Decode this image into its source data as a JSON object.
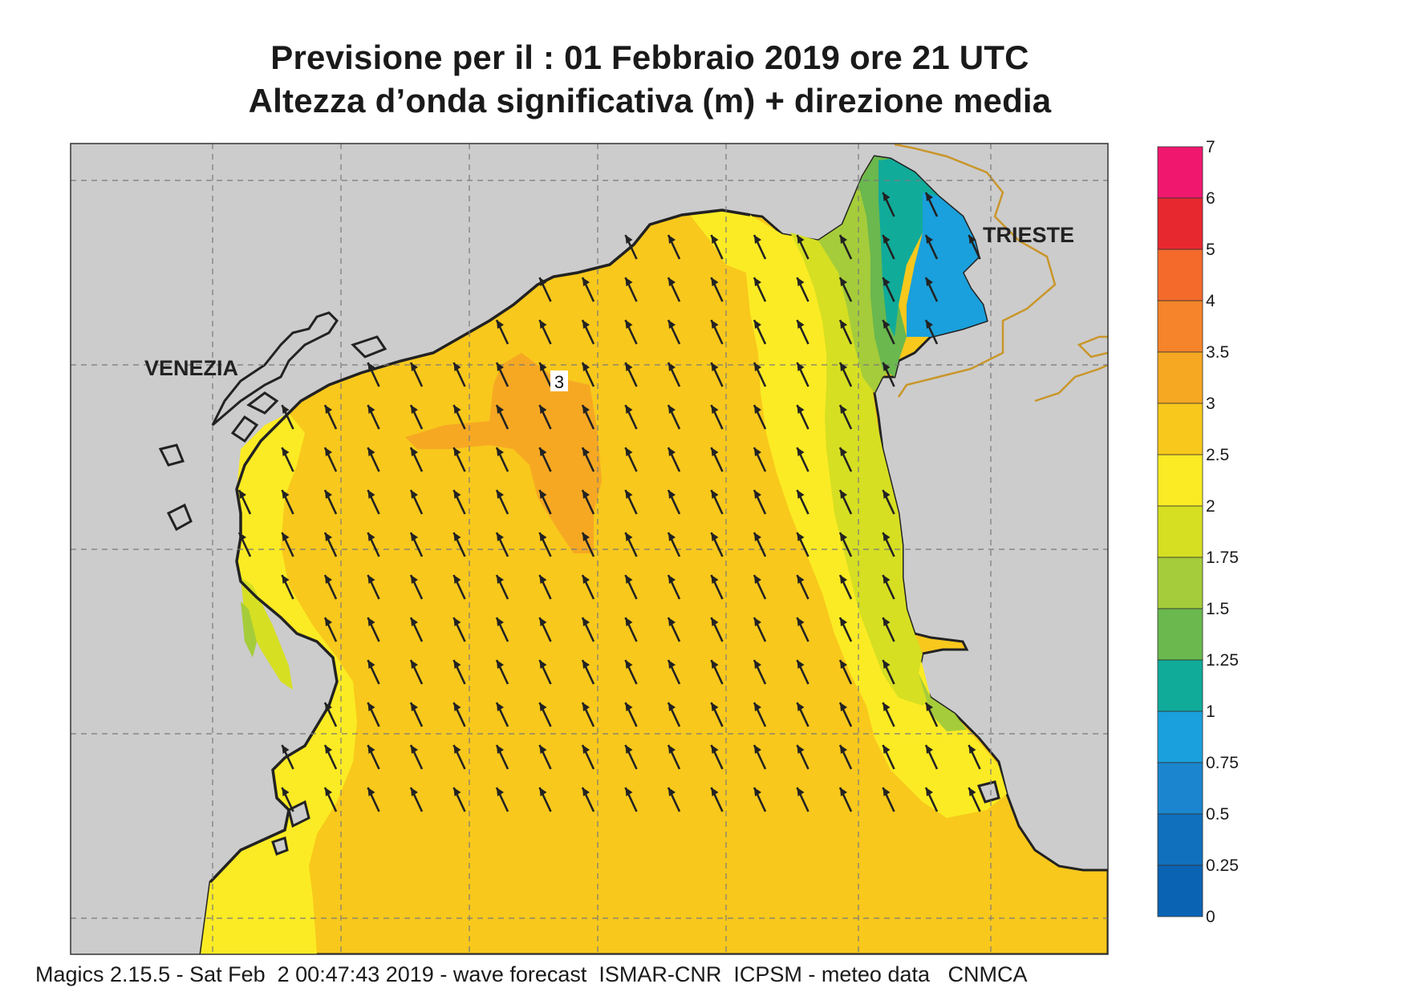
{
  "title_line1": "Previsione per il  :  01  Febbraio 2019   ore 21 UTC",
  "title_line2": "Altezza d’onda significativa (m) + direzione media",
  "footer": "Magics 2.15.5 - Sat Feb  2 00:47:43 2019 - wave forecast  ISMAR-CNR  ICPSM - meteo data   CNMCA",
  "cities": {
    "venezia": "VENEZIA",
    "trieste": "TRIESTE"
  },
  "contour_label": "3",
  "colorbar": {
    "labels": [
      "7",
      "6",
      "5",
      "4",
      "3.5",
      "3",
      "2.5",
      "2",
      "1.75",
      "1.5",
      "1.25",
      "1",
      "0.75",
      "0.5",
      "0.25",
      "0"
    ],
    "colors": [
      "#f0176e",
      "#e8282f",
      "#f36a2b",
      "#f5842a",
      "#f6a823",
      "#f8c81c",
      "#fbeb24",
      "#d6df22",
      "#a5cc3a",
      "#6ab84e",
      "#11ab9a",
      "#1aa0dc",
      "#1b86cf",
      "#1170be",
      "#0b63b3"
    ]
  },
  "colors": {
    "land": "#cccccc",
    "sea_2.5_3": "#f8c81c",
    "sea_3_3.5": "#f6a823",
    "sea_2_2.5": "#fbeb24",
    "border": "#c9962a"
  },
  "arrow_direction": "north-west"
}
